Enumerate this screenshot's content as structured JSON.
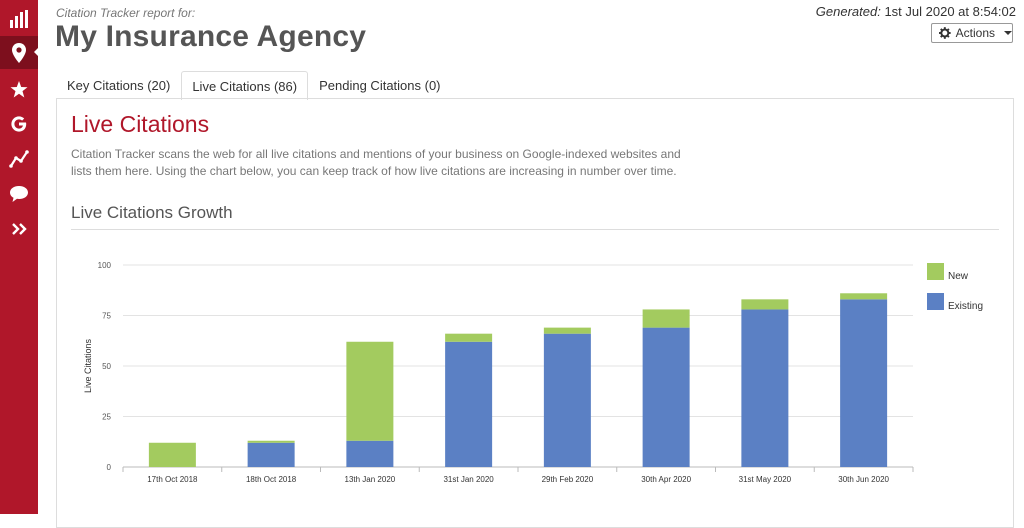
{
  "sidebar": {
    "items": [
      {
        "icon": "bar-chart-icon"
      },
      {
        "icon": "map-pin-icon",
        "active": true
      },
      {
        "icon": "star-icon"
      },
      {
        "icon": "google-icon"
      },
      {
        "icon": "trend-line-icon"
      },
      {
        "icon": "chat-bubble-icon"
      },
      {
        "icon": "double-chevron-right-icon"
      }
    ]
  },
  "header": {
    "subtitle": "Citation Tracker report for:",
    "title": "My Insurance Agency",
    "generated_label": "Generated:",
    "generated_value": "1st Jul 2020 at 8:54:02",
    "actions_label": "Actions"
  },
  "tabs": [
    {
      "label": "Key Citations (20)",
      "active": false
    },
    {
      "label": "Live Citations (86)",
      "active": true
    },
    {
      "label": "Pending Citations (0)",
      "active": false
    }
  ],
  "content": {
    "section_title": "Live Citations",
    "description": "Citation Tracker scans the web for all live citations and mentions of your business on Google-indexed websites and lists them here. Using the chart below, you can keep track of how live citations are increasing in number over time.",
    "chart_title": "Live Citations Growth"
  },
  "colors": {
    "brand": "#b0172a",
    "new": "#a3cb5f",
    "existing": "#5b80c4"
  },
  "chart_data": {
    "type": "bar",
    "stacked": true,
    "categories": [
      "17th Oct 2018",
      "18th Oct 2018",
      "13th Jan 2020",
      "31st Jan 2020",
      "29th Feb 2020",
      "30th Apr 2020",
      "31st May 2020",
      "30th Jun 2020"
    ],
    "series": [
      {
        "name": "Existing",
        "color": "#5b80c4",
        "values": [
          0,
          12,
          13,
          62,
          66,
          69,
          78,
          83
        ]
      },
      {
        "name": "New",
        "color": "#a3cb5f",
        "values": [
          12,
          1,
          49,
          4,
          3,
          9,
          5,
          3
        ]
      }
    ],
    "ylabel": "Live Citations",
    "xlabel": "",
    "ylim": [
      0,
      100
    ],
    "yticks": [
      0,
      25,
      50,
      75,
      100
    ],
    "legend": {
      "placement": "right",
      "entries": [
        "New",
        "Existing"
      ]
    },
    "grid": true
  }
}
